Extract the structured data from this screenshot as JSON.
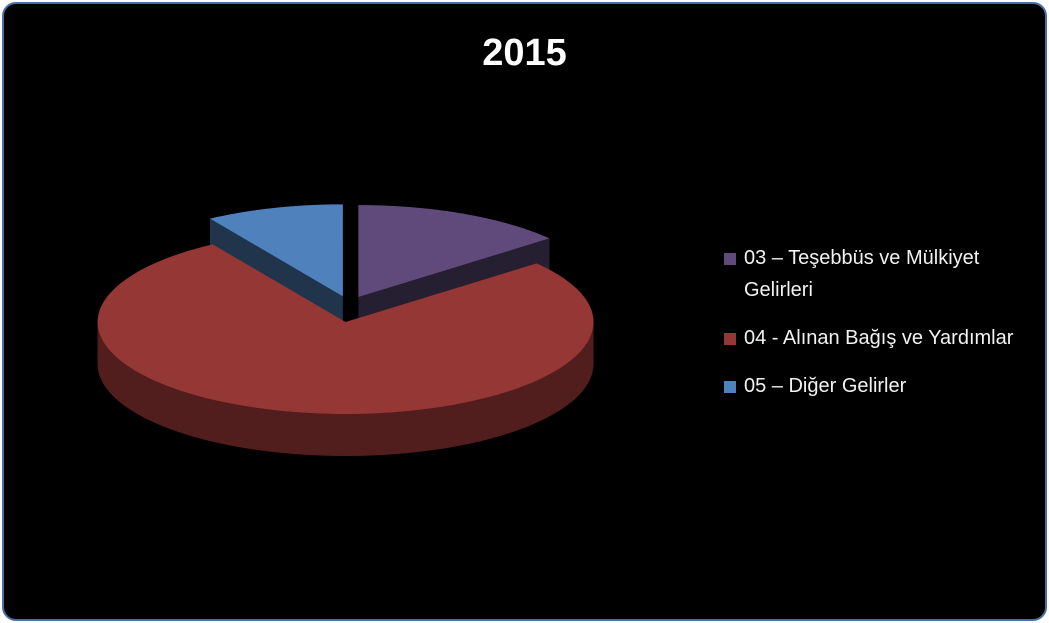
{
  "chart_data": {
    "type": "pie3d",
    "title": "2015",
    "categories": [
      "03 – Teşebbüs ve Mülkiyet Gelirleri",
      "04 - Alınan Bağış ve Yardımlar",
      "05 – Diğer Gelirler"
    ],
    "values": [
      14,
      77,
      9
    ],
    "colors": [
      "#604a7b",
      "#953735",
      "#4f81bd"
    ],
    "legend": "right"
  }
}
